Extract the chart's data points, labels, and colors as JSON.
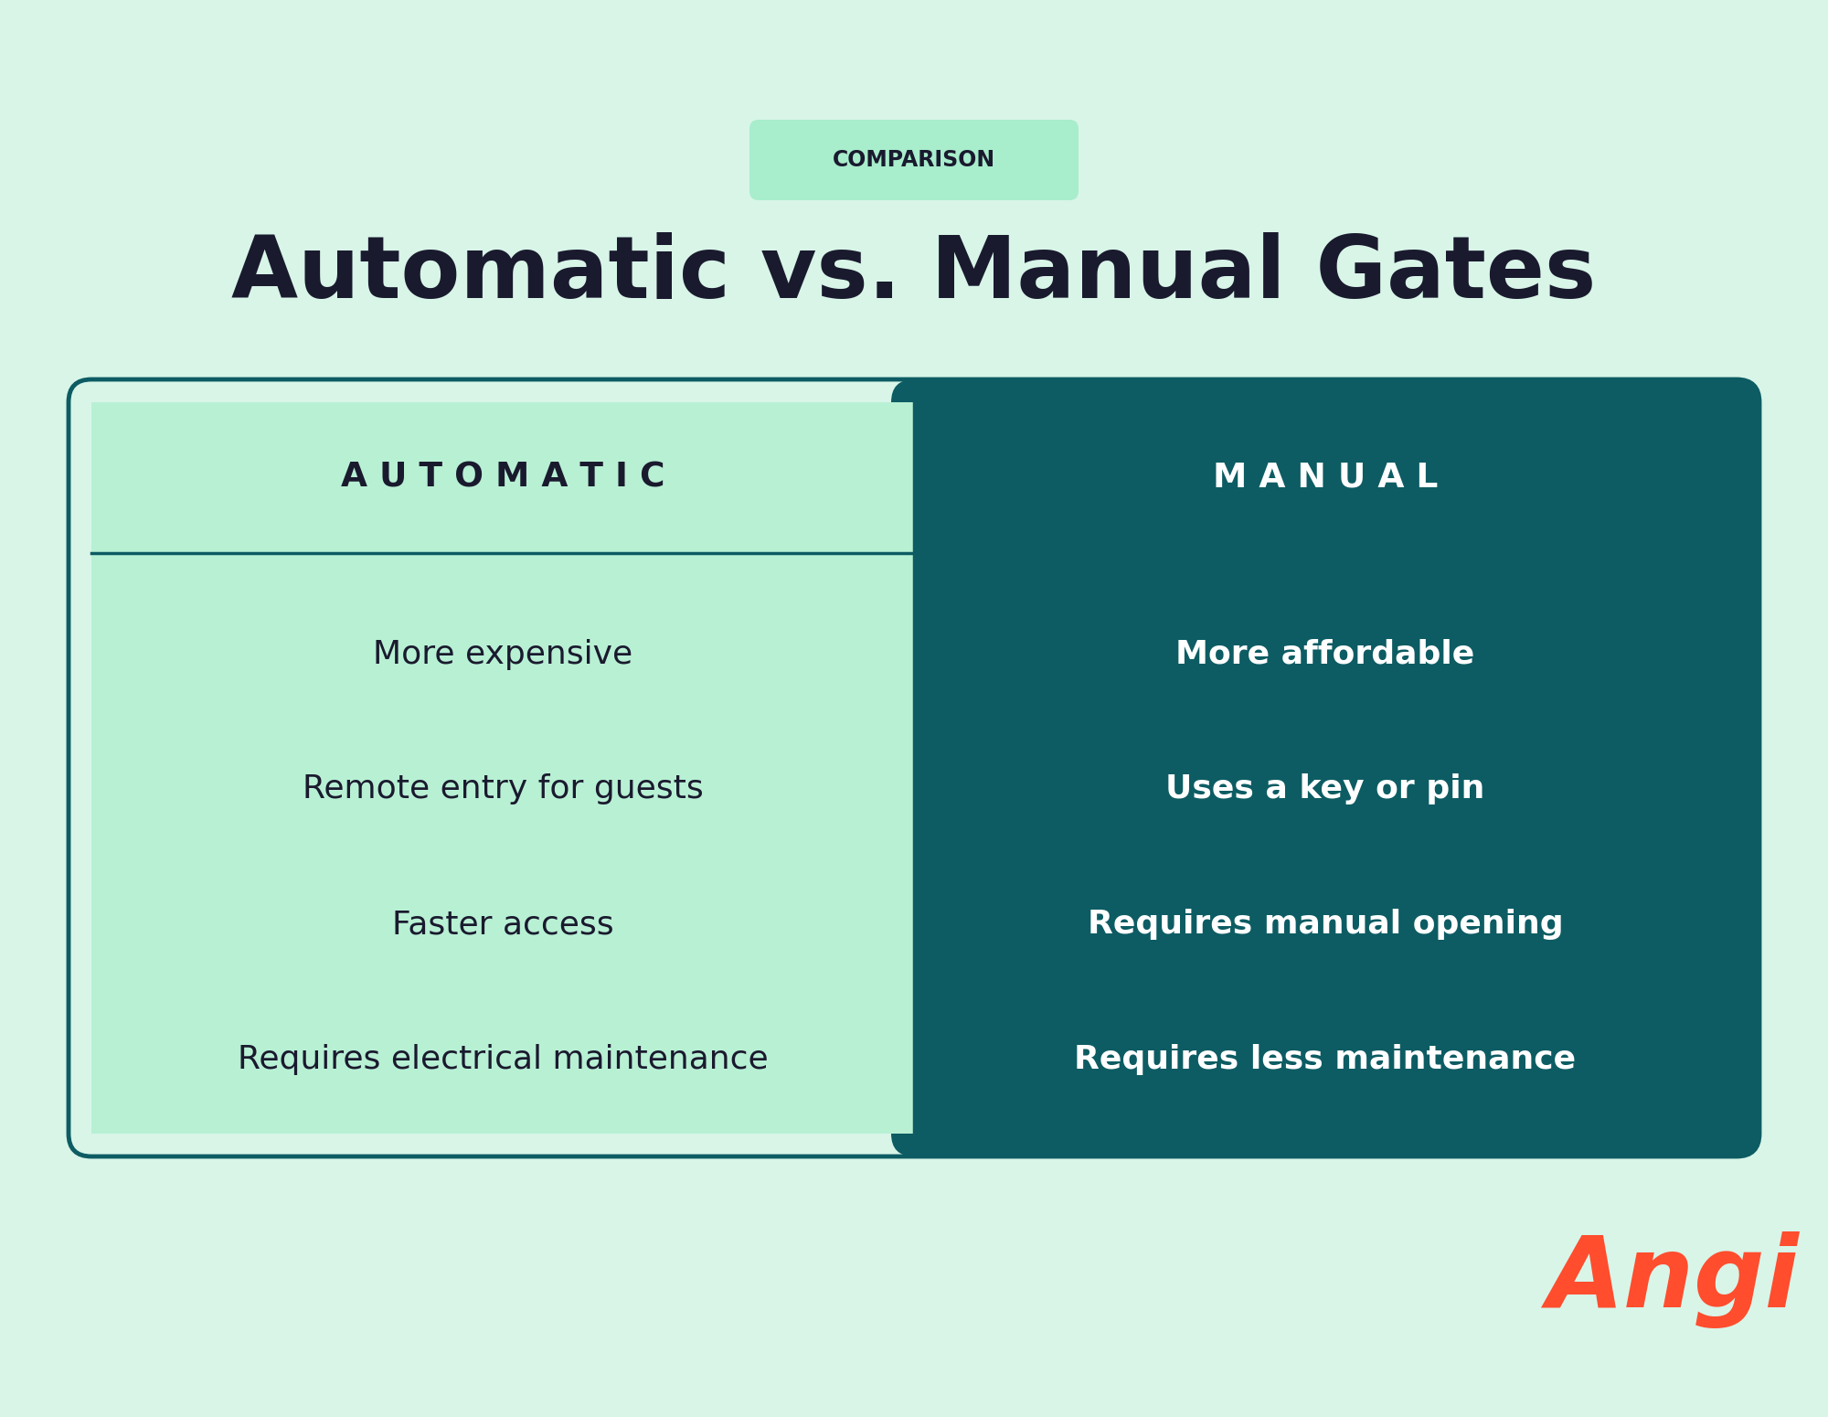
{
  "bg_color": "#d8f5e8",
  "comparison_label": "COMPARISON",
  "comparison_bg": "#a8edcc",
  "comparison_text_color": "#1a1a2e",
  "title": "Automatic vs. Manual Gates",
  "title_color": "#1a1a2e",
  "left_header": "A U T O M A T I C",
  "right_header": "M A N U A L",
  "left_bg": "#b8f0d4",
  "right_bg": "#0d5c63",
  "left_text_color": "#1a1a2e",
  "right_text_color": "#ffffff",
  "header_left_text_color": "#1a1a2e",
  "header_right_text_color": "#ffffff",
  "divider_color": "#0d5c63",
  "left_items": [
    "More expensive",
    "Remote entry for guests",
    "Faster access",
    "Requires electrical maintenance"
  ],
  "right_items": [
    "More affordable",
    "Uses a key or pin",
    "Requires manual opening",
    "Requires less maintenance"
  ],
  "angi_color": "#ff4d2e",
  "angi_text": "Angi"
}
